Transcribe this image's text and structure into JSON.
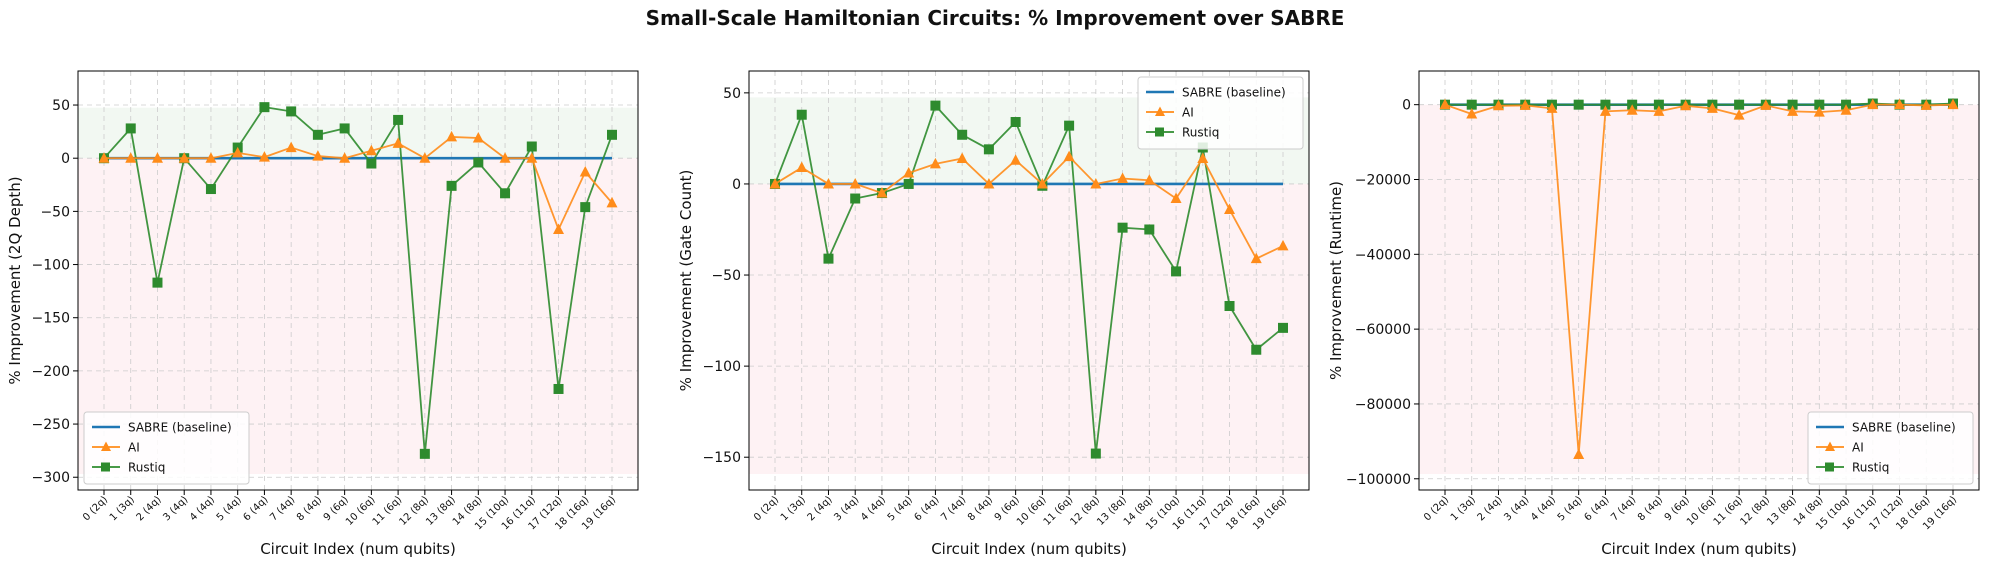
{
  "figure_title": "Small-Scale Hamiltonian Circuits: % Improvement over SABRE",
  "colors": {
    "sabre": "#1f77b4",
    "ai": "#ff8c1a",
    "rustiq": "#2e8b2e",
    "pos_band": "#e8f3e8",
    "neg_band": "#fdecef",
    "grid": "#cccccc"
  },
  "chart_data": [
    {
      "type": "line",
      "xlabel": "Circuit Index (num qubits)",
      "ylabel": "% Improvement (2Q Depth)",
      "ylim": [
        -312,
        82
      ],
      "yticks": [
        50,
        0,
        -50,
        -100,
        -150,
        -200,
        -250,
        -300
      ],
      "legend_position": "lower-left",
      "categories": [
        "0 (2q)",
        "1 (3q)",
        "2 (4q)",
        "3 (4q)",
        "4 (4q)",
        "5 (4q)",
        "6 (4q)",
        "7 (4q)",
        "8 (4q)",
        "9 (6q)",
        "10 (6q)",
        "11 (6q)",
        "12 (8q)",
        "13 (8q)",
        "14 (8q)",
        "15 (10q)",
        "16 (11q)",
        "17 (12q)",
        "18 (16q)",
        "19 (16q)"
      ],
      "series": [
        {
          "name": "SABRE (baseline)",
          "marker": "none",
          "values": [
            0,
            0,
            0,
            0,
            0,
            0,
            0,
            0,
            0,
            0,
            0,
            0,
            0,
            0,
            0,
            0,
            0,
            0,
            0,
            0
          ]
        },
        {
          "name": "AI",
          "marker": "triangle",
          "values": [
            0,
            0,
            0,
            0,
            0,
            5,
            1,
            10,
            2,
            0,
            7,
            14,
            0,
            20,
            19,
            0,
            0,
            -67,
            -13,
            -42
          ]
        },
        {
          "name": "Rustiq",
          "marker": "square",
          "values": [
            0,
            28,
            -117,
            0,
            -29,
            10,
            48,
            44,
            22,
            28,
            -5,
            36,
            -278,
            -26,
            -4,
            -33,
            11,
            -217,
            -46,
            22
          ]
        }
      ]
    },
    {
      "type": "line",
      "xlabel": "Circuit Index (num qubits)",
      "ylabel": "% Improvement (Gate Count)",
      "ylim": [
        -168,
        62
      ],
      "yticks": [
        50,
        0,
        -50,
        -100,
        -150
      ],
      "legend_position": "upper-right",
      "categories": [
        "0 (2q)",
        "1 (3q)",
        "2 (4q)",
        "3 (4q)",
        "4 (4q)",
        "5 (4q)",
        "6 (4q)",
        "7 (4q)",
        "8 (4q)",
        "9 (6q)",
        "10 (6q)",
        "11 (6q)",
        "12 (8q)",
        "13 (8q)",
        "14 (8q)",
        "15 (10q)",
        "16 (11q)",
        "17 (12q)",
        "18 (16q)",
        "19 (16q)"
      ],
      "series": [
        {
          "name": "SABRE (baseline)",
          "marker": "none",
          "values": [
            0,
            0,
            0,
            0,
            0,
            0,
            0,
            0,
            0,
            0,
            0,
            0,
            0,
            0,
            0,
            0,
            0,
            0,
            0,
            0
          ]
        },
        {
          "name": "AI",
          "marker": "triangle",
          "values": [
            0,
            9,
            0,
            0,
            -5,
            6,
            11,
            14,
            0,
            13,
            0,
            15,
            0,
            3,
            2,
            -8,
            14,
            -14,
            -41,
            -34
          ]
        },
        {
          "name": "Rustiq",
          "marker": "square",
          "values": [
            0,
            38,
            -41,
            -8,
            -5,
            0,
            43,
            27,
            19,
            34,
            -1,
            32,
            -148,
            -24,
            -25,
            -48,
            20,
            -67,
            -91,
            -79
          ]
        }
      ]
    },
    {
      "type": "line",
      "xlabel": "Circuit Index (num qubits)",
      "ylabel": "% Improvement (Runtime)",
      "ylim": [
        -103000,
        9000
      ],
      "yticks": [
        0,
        -20000,
        -40000,
        -60000,
        -80000,
        -100000
      ],
      "legend_position": "lower-right",
      "categories": [
        "0 (2q)",
        "1 (3q)",
        "2 (4q)",
        "3 (4q)",
        "4 (4q)",
        "5 (4q)",
        "6 (4q)",
        "7 (4q)",
        "8 (4q)",
        "9 (6q)",
        "10 (6q)",
        "11 (6q)",
        "12 (8q)",
        "13 (8q)",
        "14 (8q)",
        "15 (10q)",
        "16 (11q)",
        "17 (12q)",
        "18 (16q)",
        "19 (16q)"
      ],
      "series": [
        {
          "name": "SABRE (baseline)",
          "marker": "none",
          "values": [
            0,
            0,
            0,
            0,
            0,
            0,
            0,
            0,
            0,
            0,
            0,
            0,
            0,
            0,
            0,
            0,
            0,
            0,
            0,
            0
          ]
        },
        {
          "name": "AI",
          "marker": "triangle",
          "values": [
            0,
            -2500,
            -300,
            -200,
            -1000,
            -93500,
            -1800,
            -1500,
            -1800,
            -300,
            -1000,
            -2800,
            -200,
            -1800,
            -2000,
            -1500,
            0,
            0,
            -200,
            0
          ]
        },
        {
          "name": "Rustiq",
          "marker": "square",
          "values": [
            0,
            0,
            0,
            0,
            0,
            0,
            0,
            0,
            0,
            0,
            0,
            0,
            0,
            0,
            0,
            0,
            300,
            0,
            0,
            300
          ]
        }
      ]
    }
  ]
}
